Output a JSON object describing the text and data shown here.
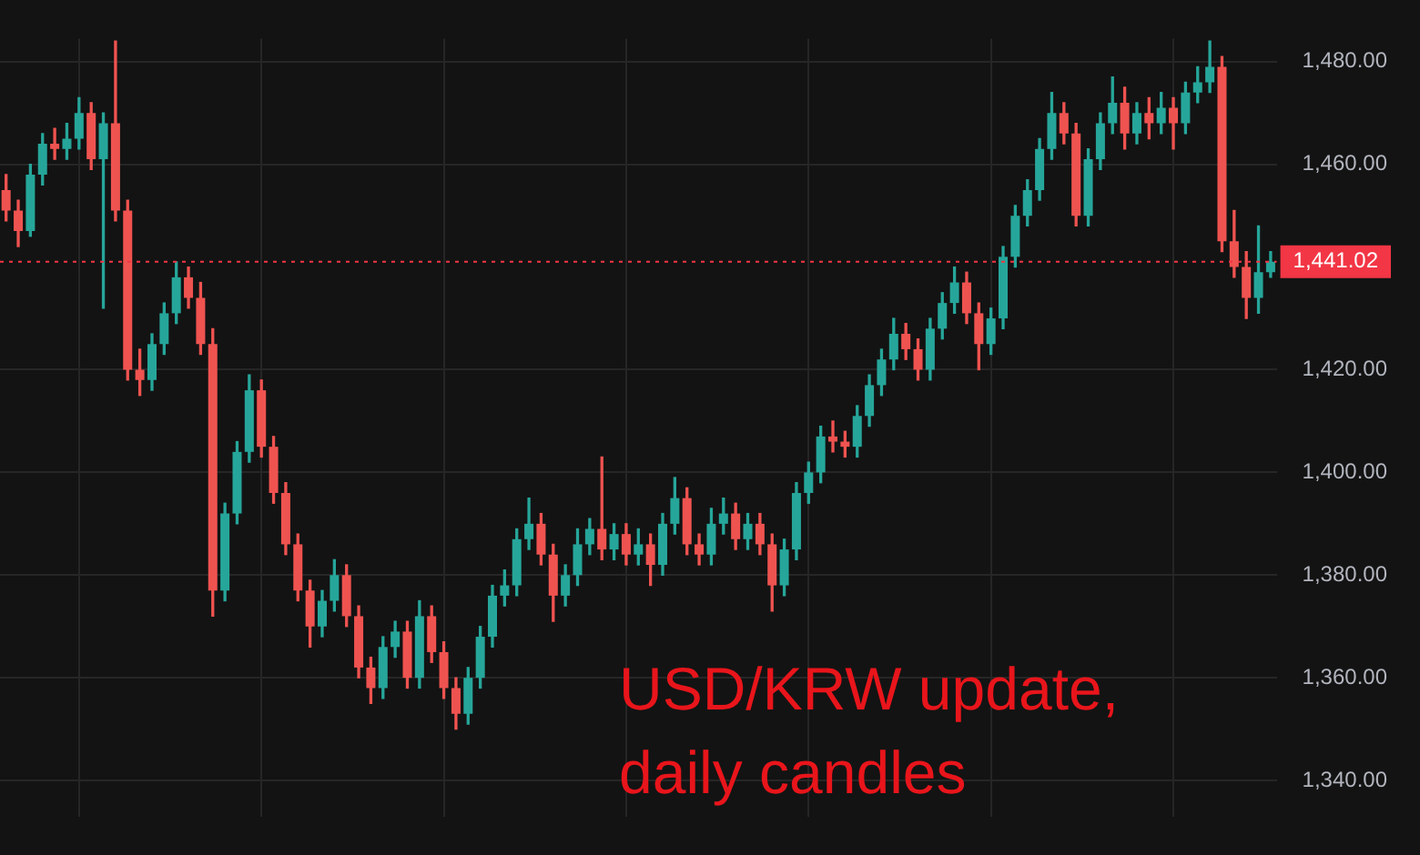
{
  "chart_data": {
    "type": "candlestick",
    "categories": [
      null,
      null,
      null,
      null,
      null,
      null,
      null,
      null,
      null,
      null,
      null,
      null,
      null,
      null,
      null,
      null,
      null,
      null,
      null,
      null,
      null,
      null,
      null,
      null,
      null,
      null,
      null,
      null,
      null,
      null,
      null,
      null,
      null,
      null,
      null,
      null,
      null,
      null,
      null,
      null,
      null,
      null,
      null,
      null,
      null,
      null,
      null,
      null,
      null,
      null,
      null,
      null,
      null,
      null,
      null,
      null,
      null,
      null,
      null,
      null,
      null,
      null,
      null,
      null,
      null,
      null,
      null,
      null,
      null,
      null,
      null,
      null,
      null,
      null,
      null,
      null,
      null,
      null,
      null,
      null,
      null,
      null,
      null,
      null,
      null,
      null,
      null,
      null,
      null,
      null,
      null,
      null,
      null,
      null,
      null,
      null,
      null,
      null,
      null,
      null,
      null,
      null,
      null,
      null,
      null
    ],
    "ohlc": [
      [
        1455,
        1458,
        1449,
        1451
      ],
      [
        1451,
        1453,
        1444,
        1447
      ],
      [
        1447,
        1460,
        1446,
        1458
      ],
      [
        1458,
        1466,
        1456,
        1464
      ],
      [
        1464,
        1467,
        1461,
        1463
      ],
      [
        1463,
        1468,
        1461,
        1465
      ],
      [
        1465,
        1473,
        1463,
        1470
      ],
      [
        1470,
        1472,
        1459,
        1461
      ],
      [
        1461,
        1470,
        1432,
        1468
      ],
      [
        1468,
        1484,
        1449,
        1451
      ],
      [
        1451,
        1453,
        1418,
        1420
      ],
      [
        1420,
        1424,
        1415,
        1418
      ],
      [
        1418,
        1427,
        1416,
        1425
      ],
      [
        1425,
        1433,
        1423,
        1431
      ],
      [
        1431,
        1441,
        1429,
        1438
      ],
      [
        1438,
        1440,
        1432,
        1434
      ],
      [
        1434,
        1437,
        1423,
        1425
      ],
      [
        1425,
        1428,
        1372,
        1377
      ],
      [
        1377,
        1394,
        1375,
        1392
      ],
      [
        1392,
        1406,
        1390,
        1404
      ],
      [
        1404,
        1419,
        1402,
        1416
      ],
      [
        1416,
        1418,
        1403,
        1405
      ],
      [
        1405,
        1407,
        1394,
        1396
      ],
      [
        1396,
        1398,
        1384,
        1386
      ],
      [
        1386,
        1388,
        1375,
        1377
      ],
      [
        1377,
        1379,
        1366,
        1370
      ],
      [
        1370,
        1377,
        1368,
        1375
      ],
      [
        1375,
        1383,
        1373,
        1380
      ],
      [
        1380,
        1382,
        1370,
        1372
      ],
      [
        1372,
        1374,
        1360,
        1362
      ],
      [
        1362,
        1364,
        1355,
        1358
      ],
      [
        1358,
        1368,
        1356,
        1366
      ],
      [
        1366,
        1371,
        1364,
        1369
      ],
      [
        1369,
        1371,
        1358,
        1360
      ],
      [
        1360,
        1375,
        1358,
        1372
      ],
      [
        1372,
        1374,
        1363,
        1365
      ],
      [
        1365,
        1367,
        1356,
        1358
      ],
      [
        1358,
        1360,
        1350,
        1353
      ],
      [
        1353,
        1362,
        1351,
        1360
      ],
      [
        1360,
        1370,
        1358,
        1368
      ],
      [
        1368,
        1378,
        1366,
        1376
      ],
      [
        1376,
        1381,
        1374,
        1378
      ],
      [
        1378,
        1389,
        1376,
        1387
      ],
      [
        1387,
        1395,
        1385,
        1390
      ],
      [
        1390,
        1392,
        1382,
        1384
      ],
      [
        1384,
        1386,
        1371,
        1376
      ],
      [
        1376,
        1382,
        1374,
        1380
      ],
      [
        1380,
        1389,
        1378,
        1386
      ],
      [
        1386,
        1391,
        1384,
        1389
      ],
      [
        1389,
        1403,
        1383,
        1385
      ],
      [
        1385,
        1390,
        1383,
        1388
      ],
      [
        1388,
        1390,
        1382,
        1384
      ],
      [
        1384,
        1389,
        1382,
        1386
      ],
      [
        1386,
        1388,
        1378,
        1382
      ],
      [
        1382,
        1392,
        1380,
        1390
      ],
      [
        1390,
        1399,
        1388,
        1395
      ],
      [
        1395,
        1397,
        1384,
        1386
      ],
      [
        1386,
        1388,
        1382,
        1384
      ],
      [
        1384,
        1393,
        1382,
        1390
      ],
      [
        1390,
        1395,
        1388,
        1392
      ],
      [
        1392,
        1394,
        1385,
        1387
      ],
      [
        1387,
        1392,
        1385,
        1390
      ],
      [
        1390,
        1392,
        1384,
        1386
      ],
      [
        1386,
        1388,
        1373,
        1378
      ],
      [
        1378,
        1387,
        1376,
        1385
      ],
      [
        1385,
        1398,
        1383,
        1396
      ],
      [
        1396,
        1402,
        1394,
        1400
      ],
      [
        1400,
        1409,
        1398,
        1407
      ],
      [
        1407,
        1410,
        1404,
        1406
      ],
      [
        1406,
        1408,
        1403,
        1405
      ],
      [
        1405,
        1413,
        1403,
        1411
      ],
      [
        1411,
        1419,
        1409,
        1417
      ],
      [
        1417,
        1424,
        1415,
        1422
      ],
      [
        1422,
        1430,
        1420,
        1427
      ],
      [
        1427,
        1429,
        1422,
        1424
      ],
      [
        1424,
        1426,
        1418,
        1420
      ],
      [
        1420,
        1430,
        1418,
        1428
      ],
      [
        1428,
        1435,
        1426,
        1433
      ],
      [
        1433,
        1440,
        1431,
        1437
      ],
      [
        1437,
        1439,
        1429,
        1431
      ],
      [
        1431,
        1433,
        1420,
        1425
      ],
      [
        1425,
        1432,
        1423,
        1430
      ],
      [
        1430,
        1444,
        1428,
        1442
      ],
      [
        1442,
        1452,
        1440,
        1450
      ],
      [
        1450,
        1457,
        1448,
        1455
      ],
      [
        1455,
        1465,
        1453,
        1463
      ],
      [
        1463,
        1474,
        1461,
        1470
      ],
      [
        1470,
        1472,
        1464,
        1466
      ],
      [
        1466,
        1468,
        1448,
        1450
      ],
      [
        1450,
        1463,
        1448,
        1461
      ],
      [
        1461,
        1470,
        1459,
        1468
      ],
      [
        1468,
        1477,
        1466,
        1472
      ],
      [
        1472,
        1475,
        1463,
        1466
      ],
      [
        1466,
        1472,
        1464,
        1470
      ],
      [
        1470,
        1473,
        1465,
        1468
      ],
      [
        1468,
        1474,
        1466,
        1471
      ],
      [
        1471,
        1473,
        1463,
        1468
      ],
      [
        1468,
        1476,
        1466,
        1474
      ],
      [
        1474,
        1479,
        1472,
        1476
      ],
      [
        1476,
        1484,
        1474,
        1479
      ],
      [
        1479,
        1481,
        1443,
        1445
      ],
      [
        1445,
        1451,
        1438,
        1440
      ],
      [
        1440,
        1443,
        1430,
        1434
      ],
      [
        1434,
        1448,
        1431,
        1439
      ],
      [
        1439,
        1443,
        1438,
        1441.02
      ]
    ],
    "colors": [
      "#ef5350",
      "#ef5350",
      "#26a69a",
      "#26a69a",
      "#ef5350",
      "#26a69a",
      "#26a69a",
      "#ef5350",
      "#26a69a",
      "#ef5350",
      "#ef5350",
      "#ef5350",
      "#26a69a",
      "#26a69a",
      "#26a69a",
      "#ef5350",
      "#ef5350",
      "#ef5350",
      "#26a69a",
      "#26a69a",
      "#26a69a",
      "#ef5350",
      "#ef5350",
      "#ef5350",
      "#ef5350",
      "#ef5350",
      "#26a69a",
      "#26a69a",
      "#ef5350",
      "#ef5350",
      "#ef5350",
      "#26a69a",
      "#26a69a",
      "#ef5350",
      "#26a69a",
      "#ef5350",
      "#ef5350",
      "#ef5350",
      "#26a69a",
      "#26a69a",
      "#26a69a",
      "#26a69a",
      "#26a69a",
      "#26a69a",
      "#ef5350",
      "#ef5350",
      "#26a69a",
      "#26a69a",
      "#26a69a",
      "#ef5350",
      "#26a69a",
      "#ef5350",
      "#26a69a",
      "#ef5350",
      "#26a69a",
      "#26a69a",
      "#ef5350",
      "#ef5350",
      "#26a69a",
      "#26a69a",
      "#ef5350",
      "#26a69a",
      "#ef5350",
      "#ef5350",
      "#26a69a",
      "#26a69a",
      "#26a69a",
      "#26a69a",
      "#ef5350",
      "#ef5350",
      "#26a69a",
      "#26a69a",
      "#26a69a",
      "#26a69a",
      "#ef5350",
      "#ef5350",
      "#26a69a",
      "#26a69a",
      "#26a69a",
      "#ef5350",
      "#ef5350",
      "#26a69a",
      "#26a69a",
      "#26a69a",
      "#26a69a",
      "#26a69a",
      "#26a69a",
      "#ef5350",
      "#ef5350",
      "#26a69a",
      "#26a69a",
      "#26a69a",
      "#ef5350",
      "#26a69a",
      "#ef5350",
      "#26a69a",
      "#ef5350",
      "#26a69a",
      "#26a69a",
      "#26a69a",
      "#ef5350",
      "#ef5350",
      "#ef5350",
      "#26a69a",
      "#26a69a"
    ],
    "ylim": [
      1333,
      1484.5
    ],
    "yticks": [
      {
        "value": 1340,
        "label": "1,340.00"
      },
      {
        "value": 1360,
        "label": "1,360.00"
      },
      {
        "value": 1380,
        "label": "1,380.00"
      },
      {
        "value": 1400,
        "label": "1,400.00"
      },
      {
        "value": 1420,
        "label": "1,420.00"
      },
      {
        "value": 1460,
        "label": "1,460.00"
      },
      {
        "value": 1480,
        "label": "1,480.00"
      }
    ],
    "ref_lines": [
      {
        "axis": "y",
        "value": 1441.02,
        "label": "1,441.02",
        "color": "#f23645",
        "line_style": "dotted"
      }
    ],
    "annotations": [
      "USD/KRW update, daily candles"
    ],
    "grid": true,
    "tick_labels": "y"
  }
}
